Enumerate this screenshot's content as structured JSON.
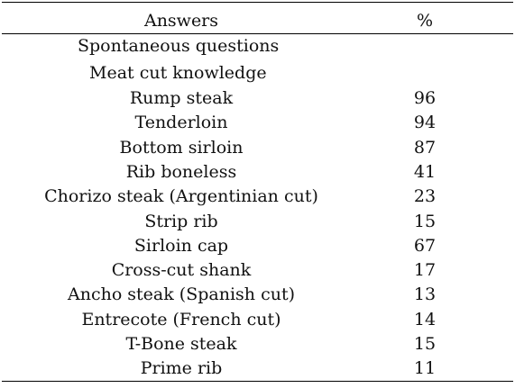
{
  "table": {
    "headers": {
      "answers": "Answers",
      "percent": "%"
    },
    "section_label": "Spontaneous questions",
    "group_label": "Meat cut knowledge",
    "rows": [
      {
        "answer": "Rump steak",
        "percent": "96"
      },
      {
        "answer": "Tenderloin",
        "percent": "94"
      },
      {
        "answer": "Bottom sirloin",
        "percent": "87"
      },
      {
        "answer": "Rib boneless",
        "percent": "41"
      },
      {
        "answer": "Chorizo steak (Argentinian cut)",
        "percent": "23"
      },
      {
        "answer": "Strip rib",
        "percent": "15"
      },
      {
        "answer": "Sirloin cap",
        "percent": "67"
      },
      {
        "answer": "Cross-cut shank",
        "percent": "17"
      },
      {
        "answer": "Ancho steak (Spanish cut)",
        "percent": "13"
      },
      {
        "answer": "Entrecote (French cut)",
        "percent": "14"
      },
      {
        "answer": "T-Bone steak",
        "percent": "15"
      },
      {
        "answer": "Prime rib",
        "percent": "11"
      }
    ]
  }
}
